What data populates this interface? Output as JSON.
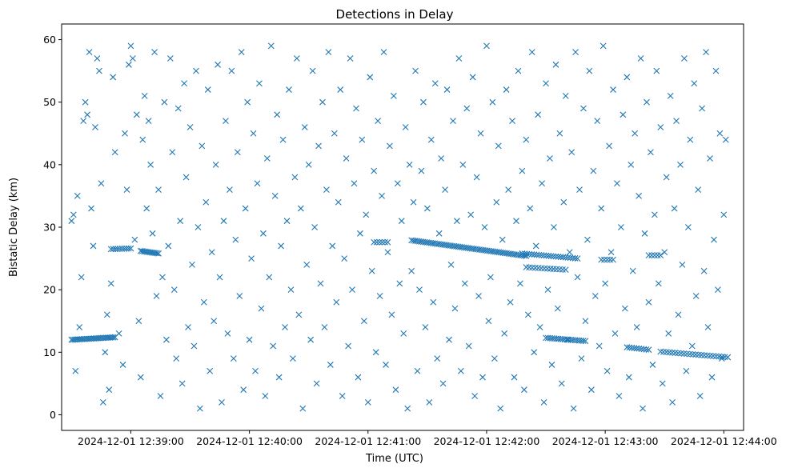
{
  "chart_data": {
    "type": "scatter",
    "title": "Detections in Delay",
    "xlabel": "Time (UTC)",
    "ylabel": "Bistatic Delay (km)",
    "marker": "x",
    "color": "#1f77b4",
    "grid": false,
    "xlim_seconds": [
      -35,
      310
    ],
    "ylim": [
      -2.5,
      62.5
    ],
    "x_ticks": [
      {
        "seconds": 0,
        "label": "2024-12-01 12:39:00"
      },
      {
        "seconds": 60,
        "label": "2024-12-01 12:40:00"
      },
      {
        "seconds": 120,
        "label": "2024-12-01 12:41:00"
      },
      {
        "seconds": 180,
        "label": "2024-12-01 12:42:00"
      },
      {
        "seconds": 240,
        "label": "2024-12-01 12:43:00"
      },
      {
        "seconds": 300,
        "label": "2024-12-01 12:44:00"
      }
    ],
    "y_ticks": [
      0,
      10,
      20,
      30,
      40,
      50,
      60
    ],
    "x_reference": "seconds since 2024-12-01 12:39:00 UTC",
    "tracks": [
      {
        "name": "track-a",
        "x_start": -30,
        "x_end": -8,
        "y_start": 12.0,
        "y_end": 12.4,
        "count": 26
      },
      {
        "name": "track-b",
        "x_start": -10,
        "x_end": 0,
        "y_start": 26.5,
        "y_end": 26.6,
        "count": 10
      },
      {
        "name": "track-c",
        "x_start": 5,
        "x_end": 14,
        "y_start": 26.2,
        "y_end": 25.8,
        "count": 12
      },
      {
        "name": "track-d",
        "x_start": 123,
        "x_end": 130,
        "y_start": 27.6,
        "y_end": 27.6,
        "count": 6
      },
      {
        "name": "track-e",
        "x_start": 142,
        "x_end": 200,
        "y_start": 27.9,
        "y_end": 25.4,
        "count": 60
      },
      {
        "name": "track-f",
        "x_start": 198,
        "x_end": 226,
        "y_start": 25.8,
        "y_end": 25.0,
        "count": 24
      },
      {
        "name": "track-g",
        "x_start": 200,
        "x_end": 220,
        "y_start": 23.6,
        "y_end": 23.2,
        "count": 14
      },
      {
        "name": "track-h",
        "x_start": 210,
        "x_end": 230,
        "y_start": 12.3,
        "y_end": 11.8,
        "count": 20
      },
      {
        "name": "track-i",
        "x_start": 251,
        "x_end": 262,
        "y_start": 10.8,
        "y_end": 10.4,
        "count": 10
      },
      {
        "name": "track-j",
        "x_start": 268,
        "x_end": 302,
        "y_start": 10.1,
        "y_end": 9.2,
        "count": 24
      },
      {
        "name": "track-k",
        "x_start": 238,
        "x_end": 244,
        "y_start": 24.8,
        "y_end": 24.8,
        "count": 5
      },
      {
        "name": "track-l",
        "x_start": 262,
        "x_end": 268,
        "y_start": 25.5,
        "y_end": 25.5,
        "count": 5
      }
    ],
    "scattered_points": [
      [
        -30,
        31
      ],
      [
        -29,
        32
      ],
      [
        -28,
        7
      ],
      [
        -27,
        35
      ],
      [
        -26,
        14
      ],
      [
        -25,
        22
      ],
      [
        -24,
        47
      ],
      [
        -23,
        50
      ],
      [
        -22,
        48
      ],
      [
        -21,
        58
      ],
      [
        -20,
        33
      ],
      [
        -19,
        27
      ],
      [
        -18,
        46
      ],
      [
        -17,
        57
      ],
      [
        -16,
        55
      ],
      [
        -15,
        37
      ],
      [
        -14,
        2
      ],
      [
        -13,
        10
      ],
      [
        -12,
        16
      ],
      [
        -11,
        4
      ],
      [
        -10,
        21
      ],
      [
        -9,
        54
      ],
      [
        -8,
        42
      ],
      [
        -6,
        13
      ],
      [
        -4,
        8
      ],
      [
        -3,
        45
      ],
      [
        -2,
        36
      ],
      [
        -1,
        56
      ],
      [
        0,
        59
      ],
      [
        1,
        57
      ],
      [
        2,
        28
      ],
      [
        3,
        48
      ],
      [
        4,
        15
      ],
      [
        5,
        6
      ],
      [
        6,
        44
      ],
      [
        7,
        51
      ],
      [
        8,
        33
      ],
      [
        9,
        47
      ],
      [
        10,
        40
      ],
      [
        11,
        29
      ],
      [
        12,
        58
      ],
      [
        13,
        19
      ],
      [
        14,
        36
      ],
      [
        15,
        3
      ],
      [
        16,
        22
      ],
      [
        17,
        50
      ],
      [
        18,
        12
      ],
      [
        19,
        27
      ],
      [
        20,
        57
      ],
      [
        21,
        42
      ],
      [
        22,
        20
      ],
      [
        23,
        9
      ],
      [
        24,
        49
      ],
      [
        25,
        31
      ],
      [
        26,
        5
      ],
      [
        27,
        53
      ],
      [
        28,
        38
      ],
      [
        29,
        14
      ],
      [
        30,
        46
      ],
      [
        31,
        24
      ],
      [
        32,
        11
      ],
      [
        33,
        55
      ],
      [
        34,
        30
      ],
      [
        35,
        1
      ],
      [
        36,
        43
      ],
      [
        37,
        18
      ],
      [
        38,
        34
      ],
      [
        39,
        52
      ],
      [
        40,
        7
      ],
      [
        41,
        26
      ],
      [
        42,
        15
      ],
      [
        43,
        40
      ],
      [
        44,
        56
      ],
      [
        45,
        22
      ],
      [
        46,
        2
      ],
      [
        47,
        31
      ],
      [
        48,
        47
      ],
      [
        49,
        13
      ],
      [
        50,
        36
      ],
      [
        51,
        55
      ],
      [
        52,
        9
      ],
      [
        53,
        28
      ],
      [
        54,
        42
      ],
      [
        55,
        19
      ],
      [
        56,
        58
      ],
      [
        57,
        4
      ],
      [
        58,
        33
      ],
      [
        59,
        50
      ],
      [
        60,
        12
      ],
      [
        61,
        25
      ],
      [
        62,
        45
      ],
      [
        63,
        7
      ],
      [
        64,
        37
      ],
      [
        65,
        53
      ],
      [
        66,
        17
      ],
      [
        67,
        29
      ],
      [
        68,
        3
      ],
      [
        69,
        41
      ],
      [
        70,
        22
      ],
      [
        71,
        59
      ],
      [
        72,
        11
      ],
      [
        73,
        35
      ],
      [
        74,
        48
      ],
      [
        75,
        6
      ],
      [
        76,
        27
      ],
      [
        77,
        44
      ],
      [
        78,
        14
      ],
      [
        79,
        31
      ],
      [
        80,
        52
      ],
      [
        81,
        20
      ],
      [
        82,
        9
      ],
      [
        83,
        38
      ],
      [
        84,
        57
      ],
      [
        85,
        16
      ],
      [
        86,
        33
      ],
      [
        87,
        1
      ],
      [
        88,
        46
      ],
      [
        89,
        24
      ],
      [
        90,
        40
      ],
      [
        91,
        12
      ],
      [
        92,
        55
      ],
      [
        93,
        30
      ],
      [
        94,
        5
      ],
      [
        95,
        43
      ],
      [
        96,
        21
      ],
      [
        97,
        50
      ],
      [
        98,
        14
      ],
      [
        99,
        36
      ],
      [
        100,
        58
      ],
      [
        101,
        8
      ],
      [
        102,
        27
      ],
      [
        103,
        45
      ],
      [
        104,
        18
      ],
      [
        105,
        34
      ],
      [
        106,
        52
      ],
      [
        107,
        3
      ],
      [
        108,
        25
      ],
      [
        109,
        41
      ],
      [
        110,
        11
      ],
      [
        111,
        57
      ],
      [
        112,
        20
      ],
      [
        113,
        37
      ],
      [
        114,
        49
      ],
      [
        115,
        6
      ],
      [
        116,
        29
      ],
      [
        117,
        44
      ],
      [
        118,
        15
      ],
      [
        119,
        32
      ],
      [
        120,
        2
      ],
      [
        121,
        54
      ],
      [
        122,
        23
      ],
      [
        123,
        39
      ],
      [
        124,
        10
      ],
      [
        125,
        47
      ],
      [
        126,
        19
      ],
      [
        127,
        35
      ],
      [
        128,
        58
      ],
      [
        129,
        8
      ],
      [
        130,
        26
      ],
      [
        131,
        43
      ],
      [
        132,
        16
      ],
      [
        133,
        51
      ],
      [
        134,
        4
      ],
      [
        135,
        37
      ],
      [
        136,
        21
      ],
      [
        137,
        31
      ],
      [
        138,
        13
      ],
      [
        139,
        46
      ],
      [
        140,
        1
      ],
      [
        141,
        40
      ],
      [
        142,
        23
      ],
      [
        143,
        34
      ],
      [
        144,
        55
      ],
      [
        145,
        7
      ],
      [
        146,
        20
      ],
      [
        147,
        39
      ],
      [
        148,
        50
      ],
      [
        149,
        14
      ],
      [
        150,
        33
      ],
      [
        151,
        2
      ],
      [
        152,
        44
      ],
      [
        153,
        18
      ],
      [
        154,
        53
      ],
      [
        155,
        9
      ],
      [
        156,
        29
      ],
      [
        157,
        41
      ],
      [
        158,
        5
      ],
      [
        159,
        36
      ],
      [
        160,
        52
      ],
      [
        161,
        12
      ],
      [
        162,
        24
      ],
      [
        163,
        47
      ],
      [
        164,
        17
      ],
      [
        165,
        31
      ],
      [
        166,
        57
      ],
      [
        167,
        7
      ],
      [
        168,
        40
      ],
      [
        169,
        21
      ],
      [
        170,
        49
      ],
      [
        171,
        11
      ],
      [
        172,
        32
      ],
      [
        173,
        54
      ],
      [
        174,
        3
      ],
      [
        175,
        38
      ],
      [
        176,
        19
      ],
      [
        177,
        45
      ],
      [
        178,
        6
      ],
      [
        179,
        30
      ],
      [
        180,
        59
      ],
      [
        181,
        15
      ],
      [
        182,
        22
      ],
      [
        183,
        50
      ],
      [
        184,
        9
      ],
      [
        185,
        34
      ],
      [
        186,
        43
      ],
      [
        187,
        1
      ],
      [
        188,
        28
      ],
      [
        189,
        13
      ],
      [
        190,
        52
      ],
      [
        191,
        36
      ],
      [
        192,
        18
      ],
      [
        193,
        47
      ],
      [
        194,
        6
      ],
      [
        195,
        31
      ],
      [
        196,
        55
      ],
      [
        197,
        21
      ],
      [
        198,
        39
      ],
      [
        199,
        4
      ],
      [
        200,
        44
      ],
      [
        201,
        16
      ],
      [
        202,
        33
      ],
      [
        203,
        58
      ],
      [
        204,
        10
      ],
      [
        205,
        27
      ],
      [
        206,
        48
      ],
      [
        207,
        14
      ],
      [
        208,
        37
      ],
      [
        209,
        2
      ],
      [
        210,
        53
      ],
      [
        211,
        20
      ],
      [
        212,
        41
      ],
      [
        213,
        8
      ],
      [
        214,
        30
      ],
      [
        215,
        56
      ],
      [
        216,
        17
      ],
      [
        217,
        45
      ],
      [
        218,
        5
      ],
      [
        219,
        34
      ],
      [
        220,
        51
      ],
      [
        221,
        12
      ],
      [
        222,
        26
      ],
      [
        223,
        42
      ],
      [
        224,
        1
      ],
      [
        225,
        58
      ],
      [
        226,
        22
      ],
      [
        227,
        36
      ],
      [
        228,
        9
      ],
      [
        229,
        49
      ],
      [
        230,
        15
      ],
      [
        231,
        28
      ],
      [
        232,
        55
      ],
      [
        233,
        4
      ],
      [
        234,
        39
      ],
      [
        235,
        19
      ],
      [
        236,
        47
      ],
      [
        237,
        11
      ],
      [
        238,
        33
      ],
      [
        239,
        59
      ],
      [
        240,
        21
      ],
      [
        241,
        7
      ],
      [
        242,
        43
      ],
      [
        243,
        26
      ],
      [
        244,
        52
      ],
      [
        245,
        13
      ],
      [
        246,
        37
      ],
      [
        247,
        3
      ],
      [
        248,
        30
      ],
      [
        249,
        48
      ],
      [
        250,
        17
      ],
      [
        251,
        54
      ],
      [
        252,
        6
      ],
      [
        253,
        40
      ],
      [
        254,
        23
      ],
      [
        255,
        45
      ],
      [
        256,
        14
      ],
      [
        257,
        35
      ],
      [
        258,
        57
      ],
      [
        259,
        1
      ],
      [
        260,
        29
      ],
      [
        261,
        50
      ],
      [
        262,
        18
      ],
      [
        263,
        42
      ],
      [
        264,
        8
      ],
      [
        265,
        32
      ],
      [
        266,
        55
      ],
      [
        267,
        21
      ],
      [
        268,
        46
      ],
      [
        269,
        5
      ],
      [
        270,
        26
      ],
      [
        271,
        38
      ],
      [
        272,
        13
      ],
      [
        273,
        51
      ],
      [
        274,
        2
      ],
      [
        275,
        33
      ],
      [
        276,
        47
      ],
      [
        277,
        16
      ],
      [
        278,
        40
      ],
      [
        279,
        24
      ],
      [
        280,
        57
      ],
      [
        281,
        7
      ],
      [
        282,
        30
      ],
      [
        283,
        44
      ],
      [
        284,
        11
      ],
      [
        285,
        53
      ],
      [
        286,
        19
      ],
      [
        287,
        36
      ],
      [
        288,
        3
      ],
      [
        289,
        49
      ],
      [
        290,
        23
      ],
      [
        291,
        58
      ],
      [
        292,
        14
      ],
      [
        293,
        41
      ],
      [
        294,
        6
      ],
      [
        295,
        28
      ],
      [
        296,
        55
      ],
      [
        297,
        20
      ],
      [
        298,
        45
      ],
      [
        299,
        9
      ],
      [
        300,
        32
      ],
      [
        301,
        44
      ]
    ]
  }
}
